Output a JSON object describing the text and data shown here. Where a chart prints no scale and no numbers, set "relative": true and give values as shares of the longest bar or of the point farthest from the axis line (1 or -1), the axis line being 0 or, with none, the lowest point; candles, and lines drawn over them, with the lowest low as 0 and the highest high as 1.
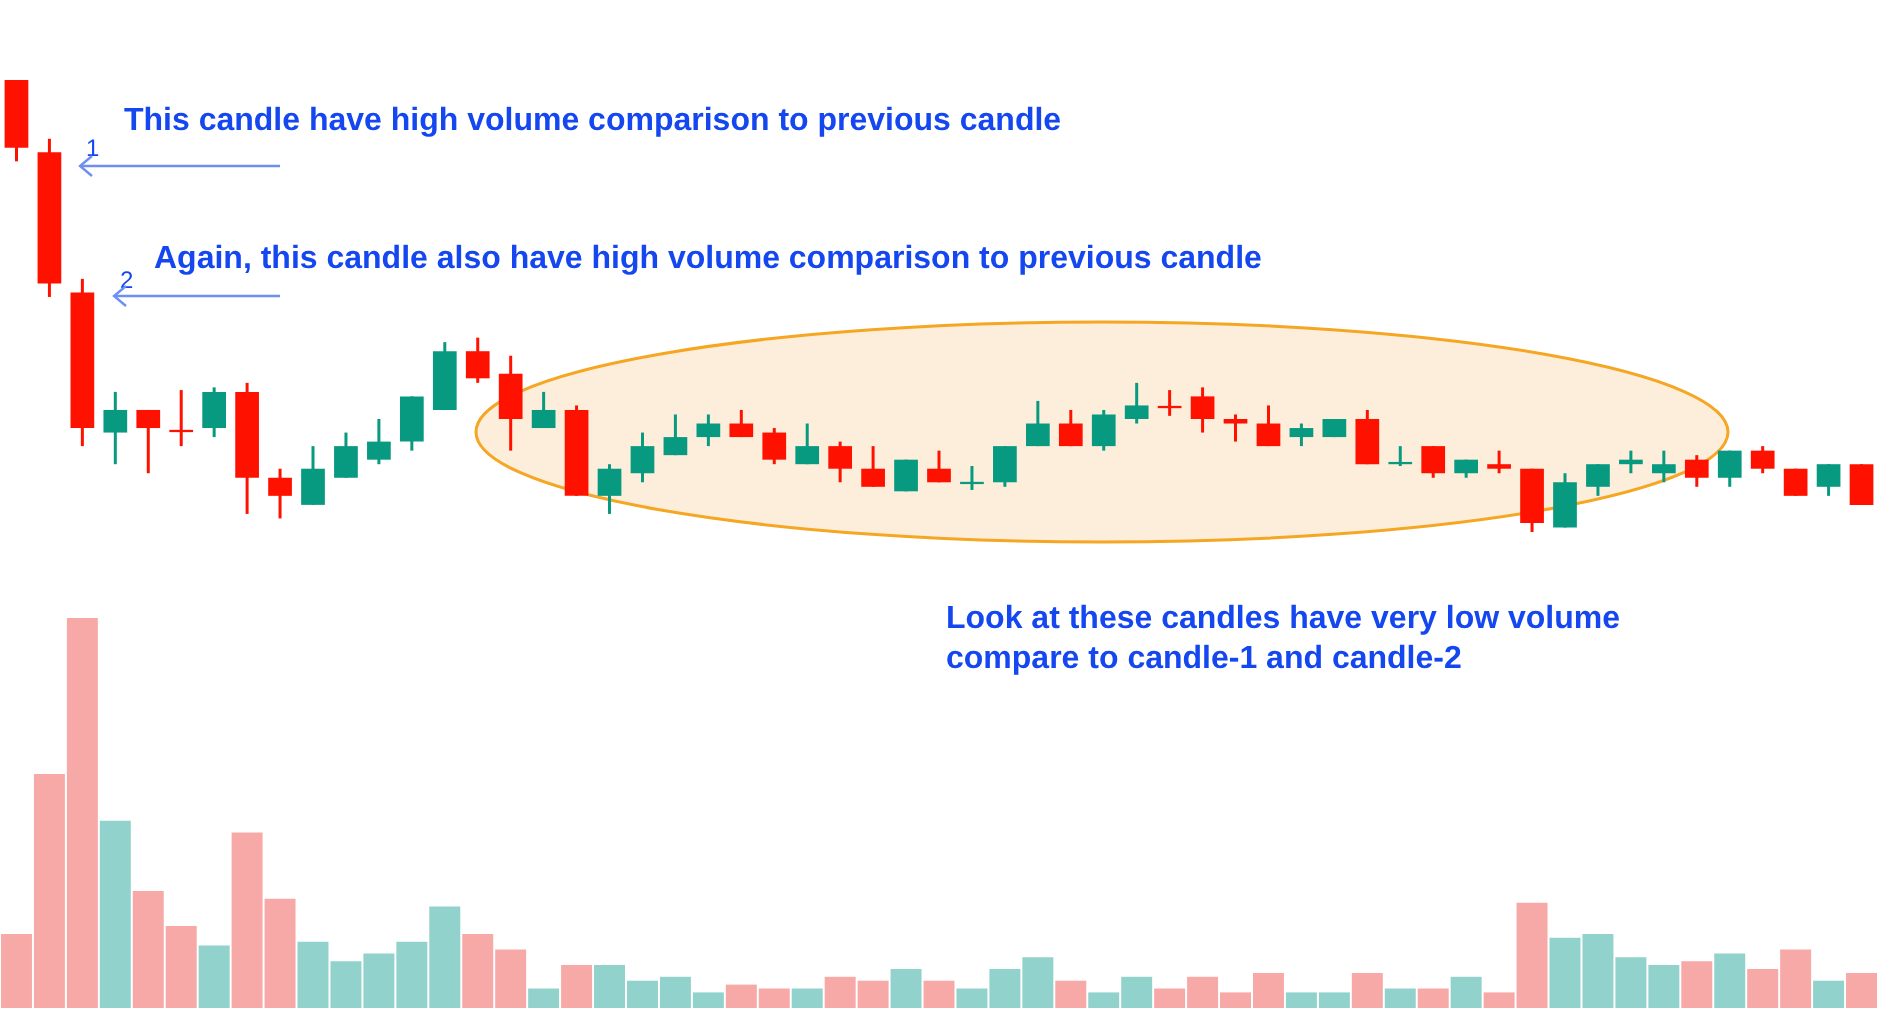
{
  "chart_data": [
    {
      "type": "candlestick",
      "relative": true,
      "categories": [
        null,
        null,
        null,
        null,
        null,
        null,
        null,
        null,
        null,
        null,
        null,
        null,
        null,
        null,
        null,
        null,
        null,
        null,
        null,
        null,
        null,
        null,
        null,
        null,
        null,
        null,
        null,
        null,
        null,
        null,
        null,
        null,
        null,
        null,
        null,
        null,
        null,
        null,
        null,
        null,
        null,
        null,
        null,
        null,
        null,
        null,
        null,
        null,
        null,
        null,
        null,
        null,
        null,
        null,
        null,
        null,
        null
      ],
      "ohlc": [
        [
          1.0,
          1.0,
          0.82,
          0.85
        ],
        [
          0.84,
          0.87,
          0.52,
          0.55
        ],
        [
          0.53,
          0.56,
          0.19,
          0.23
        ],
        [
          0.22,
          0.31,
          0.15,
          0.27
        ],
        [
          0.27,
          0.27,
          0.13,
          0.23
        ],
        [
          0.226,
          0.314,
          0.19,
          0.221
        ],
        [
          0.23,
          0.32,
          0.21,
          0.31
        ],
        [
          0.31,
          0.33,
          0.04,
          0.12
        ],
        [
          0.12,
          0.14,
          0.03,
          0.08
        ],
        [
          0.06,
          0.19,
          0.06,
          0.14
        ],
        [
          0.12,
          0.22,
          0.12,
          0.19
        ],
        [
          0.16,
          0.25,
          0.15,
          0.2
        ],
        [
          0.2,
          0.3,
          0.18,
          0.3
        ],
        [
          0.27,
          0.42,
          0.27,
          0.4
        ],
        [
          0.4,
          0.43,
          0.33,
          0.34
        ],
        [
          0.35,
          0.39,
          0.18,
          0.25
        ],
        [
          0.23,
          0.31,
          0.23,
          0.27
        ],
        [
          0.27,
          0.28,
          0.08,
          0.08
        ],
        [
          0.08,
          0.15,
          0.04,
          0.14
        ],
        [
          0.13,
          0.22,
          0.11,
          0.19
        ],
        [
          0.17,
          0.26,
          0.17,
          0.21
        ],
        [
          0.21,
          0.26,
          0.19,
          0.24
        ],
        [
          0.24,
          0.27,
          0.21,
          0.21
        ],
        [
          0.22,
          0.23,
          0.15,
          0.16
        ],
        [
          0.15,
          0.24,
          0.15,
          0.19
        ],
        [
          0.19,
          0.2,
          0.11,
          0.14
        ],
        [
          0.14,
          0.19,
          0.1,
          0.1
        ],
        [
          0.09,
          0.16,
          0.09,
          0.16
        ],
        [
          0.14,
          0.18,
          0.11,
          0.11
        ],
        [
          0.106,
          0.146,
          0.093,
          0.111
        ],
        [
          0.11,
          0.19,
          0.1,
          0.19
        ],
        [
          0.19,
          0.29,
          0.19,
          0.24
        ],
        [
          0.24,
          0.27,
          0.19,
          0.19
        ],
        [
          0.19,
          0.27,
          0.18,
          0.26
        ],
        [
          0.25,
          0.33,
          0.24,
          0.28
        ],
        [
          0.279,
          0.314,
          0.257,
          0.274
        ],
        [
          0.3,
          0.32,
          0.22,
          0.25
        ],
        [
          0.25,
          0.26,
          0.2,
          0.24
        ],
        [
          0.24,
          0.28,
          0.19,
          0.19
        ],
        [
          0.21,
          0.24,
          0.19,
          0.23
        ],
        [
          0.21,
          0.25,
          0.21,
          0.25
        ],
        [
          0.25,
          0.27,
          0.15,
          0.15
        ],
        [
          0.15,
          0.19,
          0.146,
          0.155
        ],
        [
          0.19,
          0.19,
          0.12,
          0.13
        ],
        [
          0.13,
          0.16,
          0.12,
          0.16
        ],
        [
          0.15,
          0.18,
          0.13,
          0.14
        ],
        [
          0.14,
          0.14,
          0.0,
          0.02
        ],
        [
          0.01,
          0.13,
          0.01,
          0.11
        ],
        [
          0.1,
          0.15,
          0.08,
          0.15
        ],
        [
          0.15,
          0.18,
          0.13,
          0.16
        ],
        [
          0.13,
          0.18,
          0.11,
          0.15
        ],
        [
          0.16,
          0.17,
          0.1,
          0.12
        ],
        [
          0.12,
          0.18,
          0.1,
          0.18
        ],
        [
          0.18,
          0.19,
          0.13,
          0.14
        ],
        [
          0.14,
          0.14,
          0.08,
          0.08
        ],
        [
          0.1,
          0.15,
          0.08,
          0.15
        ],
        [
          0.15,
          0.15,
          0.06,
          0.06
        ]
      ],
      "colors": [
        "#ff1100",
        "#ff1100",
        "#ff1100",
        "#089981",
        "#ff1100",
        "#ff1100",
        "#089981",
        "#ff1100",
        "#ff1100",
        "#089981",
        "#089981",
        "#089981",
        "#089981",
        "#089981",
        "#ff1100",
        "#ff1100",
        "#089981",
        "#ff1100",
        "#089981",
        "#089981",
        "#089981",
        "#089981",
        "#ff1100",
        "#ff1100",
        "#089981",
        "#ff1100",
        "#ff1100",
        "#089981",
        "#ff1100",
        "#089981",
        "#089981",
        "#089981",
        "#ff1100",
        "#089981",
        "#089981",
        "#ff1100",
        "#ff1100",
        "#ff1100",
        "#ff1100",
        "#089981",
        "#089981",
        "#ff1100",
        "#089981",
        "#ff1100",
        "#089981",
        "#ff1100",
        "#ff1100",
        "#089981",
        "#089981",
        "#089981",
        "#089981",
        "#ff1100",
        "#089981",
        "#ff1100",
        "#ff1100",
        "#089981",
        "#ff1100"
      ],
      "annotations": [
        "This candle have high volume comparison to previous candle",
        "1",
        "Again, this candle also have high volume comparison to previous candle",
        "2",
        "Look at these candles have very low volume compare to candle-1 and candle-2"
      ]
    },
    {
      "type": "bar",
      "relative": true,
      "categories": [
        null,
        null,
        null,
        null,
        null,
        null,
        null,
        null,
        null,
        null,
        null,
        null,
        null,
        null,
        null,
        null,
        null,
        null,
        null,
        null,
        null,
        null,
        null,
        null,
        null,
        null,
        null,
        null,
        null,
        null,
        null,
        null,
        null,
        null,
        null,
        null,
        null,
        null,
        null,
        null,
        null,
        null,
        null,
        null,
        null,
        null,
        null,
        null,
        null,
        null,
        null,
        null,
        null,
        null,
        null,
        null,
        null
      ],
      "values": [
        0.19,
        0.6,
        1,
        0.48,
        0.3,
        0.21,
        0.16,
        0.45,
        0.28,
        0.17,
        0.12,
        0.14,
        0.17,
        0.26,
        0.19,
        0.15,
        0.05,
        0.11,
        0.11,
        0.07,
        0.08,
        0.04,
        0.06,
        0.05,
        0.05,
        0.08,
        0.07,
        0.1,
        0.07,
        0.05,
        0.1,
        0.13,
        0.07,
        0.04,
        0.08,
        0.05,
        0.08,
        0.04,
        0.09,
        0.04,
        0.04,
        0.09,
        0.05,
        0.05,
        0.08,
        0.04,
        0.27,
        0.18,
        0.19,
        0.13,
        0.11,
        0.12,
        0.14,
        0.1,
        0.15,
        0.07,
        0.09
      ],
      "colors": [
        "#f7a9a7",
        "#f7a9a7",
        "#f7a9a7",
        "#92d2cc",
        "#f7a9a7",
        "#f7a9a7",
        "#92d2cc",
        "#f7a9a7",
        "#f7a9a7",
        "#92d2cc",
        "#92d2cc",
        "#92d2cc",
        "#92d2cc",
        "#92d2cc",
        "#f7a9a7",
        "#f7a9a7",
        "#92d2cc",
        "#f7a9a7",
        "#92d2cc",
        "#92d2cc",
        "#92d2cc",
        "#92d2cc",
        "#f7a9a7",
        "#f7a9a7",
        "#92d2cc",
        "#f7a9a7",
        "#f7a9a7",
        "#92d2cc",
        "#f7a9a7",
        "#92d2cc",
        "#92d2cc",
        "#92d2cc",
        "#f7a9a7",
        "#92d2cc",
        "#92d2cc",
        "#f7a9a7",
        "#f7a9a7",
        "#f7a9a7",
        "#f7a9a7",
        "#92d2cc",
        "#92d2cc",
        "#f7a9a7",
        "#92d2cc",
        "#f7a9a7",
        "#92d2cc",
        "#f7a9a7",
        "#f7a9a7",
        "#92d2cc",
        "#92d2cc",
        "#92d2cc",
        "#92d2cc",
        "#f7a9a7",
        "#92d2cc",
        "#f7a9a7",
        "#f7a9a7",
        "#92d2cc",
        "#f7a9a7"
      ]
    }
  ]
}
